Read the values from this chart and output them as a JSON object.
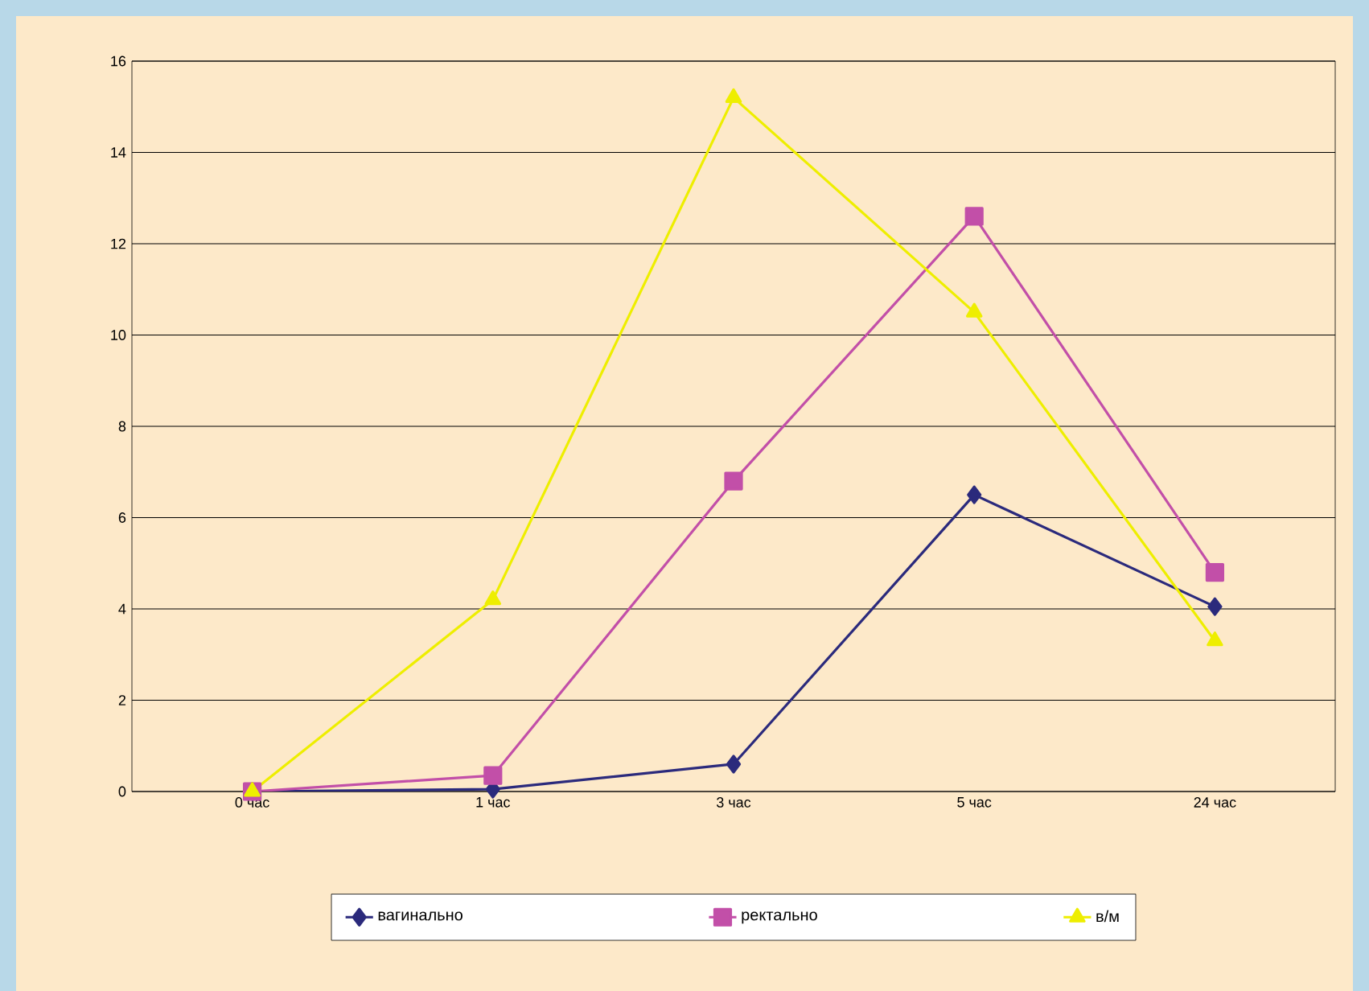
{
  "chart_data": {
    "type": "line",
    "categories": [
      "0  час",
      "1 час",
      "3 час",
      "5 час",
      "24 час"
    ],
    "ylim": [
      0,
      16
    ],
    "yticks": [
      0,
      2,
      4,
      6,
      8,
      10,
      12,
      14,
      16
    ],
    "grid": "y",
    "legend": "bottom",
    "series": [
      {
        "name": "вагинально",
        "color": "#2b2a7c",
        "marker": "diamond",
        "values": [
          0,
          0.05,
          0.6,
          6.5,
          4.05
        ]
      },
      {
        "name": "ректально",
        "color": "#c24fa8",
        "marker": "square",
        "values": [
          0,
          0.35,
          6.8,
          12.6,
          4.8
        ]
      },
      {
        "name": "в/м",
        "color": "#eeee00",
        "marker": "triangle",
        "values": [
          0,
          4.2,
          15.2,
          10.5,
          3.3
        ]
      }
    ]
  }
}
